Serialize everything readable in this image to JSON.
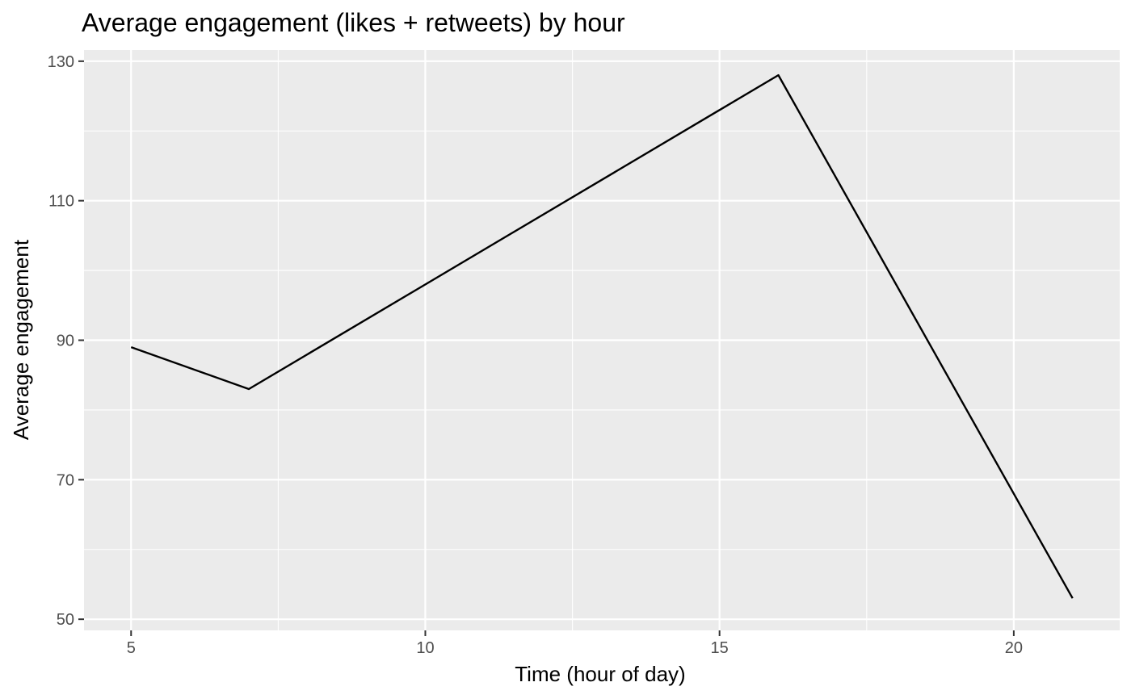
{
  "chart_data": {
    "type": "line",
    "title": "Average engagement (likes + retweets) by hour",
    "xlabel": "Time (hour of day)",
    "ylabel": "Average engagement",
    "x": [
      5,
      7,
      16,
      21
    ],
    "series": [
      {
        "values": [
          89,
          83,
          128,
          53
        ]
      }
    ],
    "xlim": [
      4.2,
      21.8
    ],
    "ylim": [
      48.4,
      131.6
    ],
    "xticks": [
      5,
      10,
      15,
      20
    ],
    "xtick_labels": [
      "5",
      "10",
      "15",
      "20"
    ],
    "yticks": [
      50,
      70,
      90,
      110,
      130
    ],
    "ytick_labels": [
      "50",
      "70",
      "90",
      "110",
      "130"
    ],
    "grid": true,
    "legend": "none",
    "colors": {
      "panel_background": "#EBEBEB",
      "grid": "#FFFFFF",
      "line": "#000000",
      "tick_text": "#4D4D4D",
      "tick_mark": "#333333"
    }
  }
}
